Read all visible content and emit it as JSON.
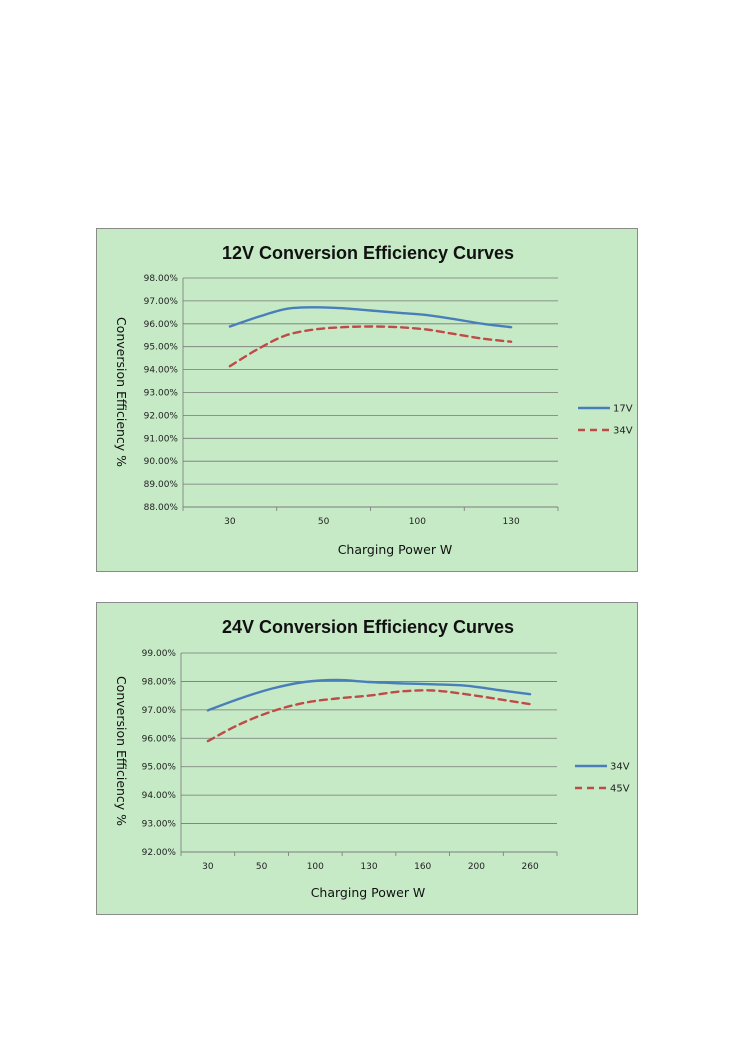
{
  "chart_data": [
    {
      "type": "line",
      "title": "12V Conversion Efficiency Curves",
      "xlabel": "Charging Power W",
      "ylabel": "Conversion Efficiency %",
      "categories": [
        "30",
        "50",
        "100",
        "130"
      ],
      "ylim": [
        88.0,
        98.0
      ],
      "yticks": [
        "88.00%",
        "89.00%",
        "90.00%",
        "91.00%",
        "92.00%",
        "93.00%",
        "94.00%",
        "95.00%",
        "96.00%",
        "97.00%",
        "98.00%"
      ],
      "grid": true,
      "legend": "right",
      "series": [
        {
          "name": "17V",
          "style": "solid",
          "color": "#4a7ebb",
          "x": [
            30,
            40,
            50,
            60,
            70,
            80,
            90,
            100,
            110,
            120,
            130
          ],
          "values": [
            95.88,
            96.3,
            96.65,
            96.72,
            96.68,
            96.58,
            96.48,
            96.38,
            96.2,
            96.0,
            95.85
          ]
        },
        {
          "name": "34V",
          "style": "dashed",
          "color": "#be4b48",
          "x": [
            30,
            40,
            50,
            60,
            70,
            80,
            90,
            100,
            110,
            120,
            130
          ],
          "values": [
            94.15,
            94.9,
            95.5,
            95.75,
            95.85,
            95.88,
            95.85,
            95.75,
            95.55,
            95.35,
            95.22
          ]
        }
      ]
    },
    {
      "type": "line",
      "title": "24V Conversion Efficiency Curves",
      "xlabel": "Charging Power W",
      "ylabel": "Conversion Efficiency %",
      "categories": [
        "30",
        "50",
        "100",
        "130",
        "160",
        "200",
        "260"
      ],
      "ylim": [
        92.0,
        99.0
      ],
      "yticks": [
        "92.00%",
        "93.00%",
        "94.00%",
        "95.00%",
        "96.00%",
        "97.00%",
        "98.00%",
        "99.00%"
      ],
      "grid": true,
      "legend": "right",
      "series": [
        {
          "name": "34V",
          "style": "solid",
          "color": "#4a7ebb",
          "x": [
            30,
            40,
            50,
            60,
            70,
            80,
            90,
            100,
            110,
            120,
            130
          ],
          "values": [
            96.98,
            97.4,
            97.75,
            97.98,
            98.05,
            97.98,
            97.93,
            97.9,
            97.85,
            97.7,
            97.55
          ]
        },
        {
          "name": "45V",
          "style": "dashed",
          "color": "#be4b48",
          "x": [
            30,
            40,
            50,
            60,
            70,
            80,
            90,
            100,
            110,
            120,
            130
          ],
          "values": [
            95.9,
            96.5,
            96.95,
            97.25,
            97.4,
            97.5,
            97.65,
            97.68,
            97.55,
            97.38,
            97.2
          ]
        }
      ]
    }
  ]
}
